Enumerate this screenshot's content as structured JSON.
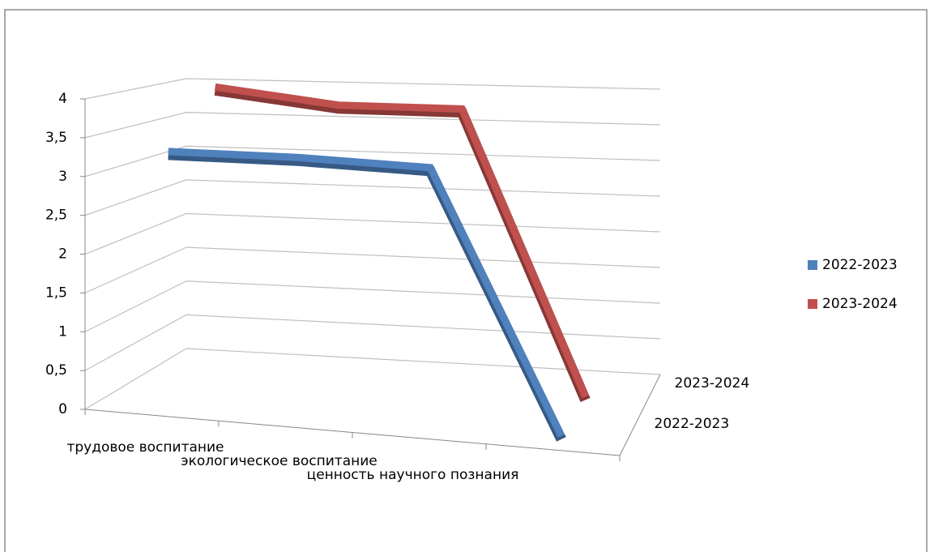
{
  "chart_data": {
    "type": "line3d",
    "categories": [
      "трудовое воспитание",
      "экологическое воспитание",
      "ценность научного познания",
      null
    ],
    "series": [
      {
        "name": "2022-2023",
        "color": "#4f81bd",
        "values": [
          3.3,
          3.3,
          3.25,
          0
        ]
      },
      {
        "name": "2023-2024",
        "color": "#c0504d",
        "values": [
          4,
          3.8,
          3.8,
          0
        ]
      }
    ],
    "ylim": [
      0,
      4
    ],
    "yticks": [
      0,
      {
        "value": 0.5,
        "label": "0,5"
      },
      1,
      {
        "value": 1.5,
        "label": "1,5"
      },
      2,
      {
        "value": 2.5,
        "label": "2,5"
      },
      3,
      {
        "value": 3.5,
        "label": "3,5"
      },
      4
    ],
    "grid": true,
    "legend": "right"
  }
}
